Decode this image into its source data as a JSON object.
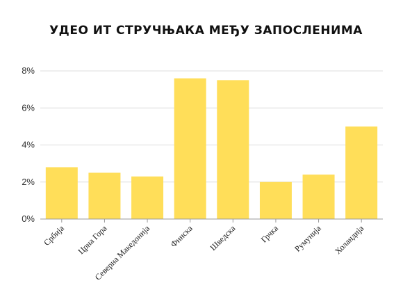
{
  "chart_data": {
    "type": "bar",
    "title": "УДЕО ИТ СТРУЧЊАКА МЕЂУ ЗАПОСЛЕНИМА",
    "categories": [
      "Србија",
      "Црна Гора",
      "Северна Македонија",
      "Финска",
      "Шведска",
      "Грчка",
      "Румунија",
      "Холандија"
    ],
    "values": [
      2.8,
      2.5,
      2.3,
      7.6,
      7.5,
      2.0,
      2.4,
      5.0
    ],
    "ylim": [
      0,
      8
    ],
    "yticks": [
      0,
      2,
      4,
      6,
      8
    ],
    "ytick_labels": [
      "0%",
      "2%",
      "4%",
      "6%",
      "8%"
    ],
    "xlabel": "",
    "ylabel": "",
    "grid": true,
    "bar_color": "#FFDE59",
    "grid_color": "#DDDDDD"
  }
}
